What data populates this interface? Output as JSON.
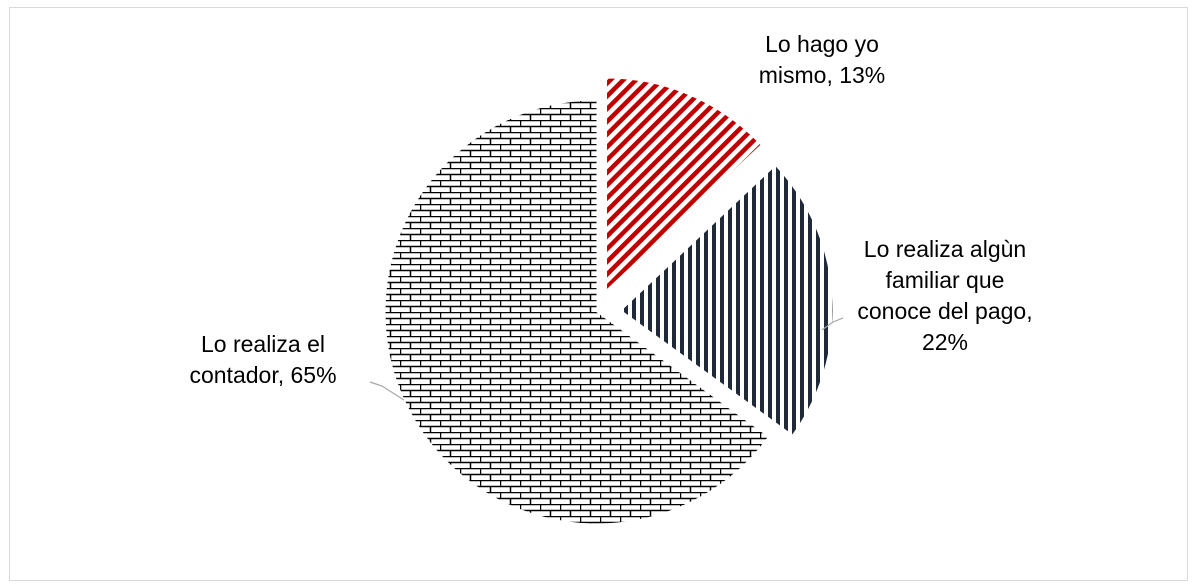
{
  "chart_data": {
    "type": "pie",
    "title": "",
    "slices": [
      {
        "label": "Lo hago yo mismo, 13%",
        "label_lines": [
          "Lo hago yo",
          "mismo, 13%"
        ],
        "value": 13,
        "color": "#c00000",
        "pattern": "red-diagonal-stripes"
      },
      {
        "label": "Lo realiza algùn familiar que conoce del pago, 22%",
        "label_lines": [
          "Lo realiza algùn",
          "familiar que",
          "conoce del pago,",
          "22%"
        ],
        "value": 22,
        "color": "#1f2937",
        "pattern": "dark-vertical-stripes"
      },
      {
        "label": "Lo realiza el contador, 65%",
        "label_lines": [
          "Lo realiza el",
          "contador, 65%"
        ],
        "value": 65,
        "color": "#000000",
        "pattern": "brick"
      }
    ],
    "legend": "none",
    "exploded": true
  }
}
